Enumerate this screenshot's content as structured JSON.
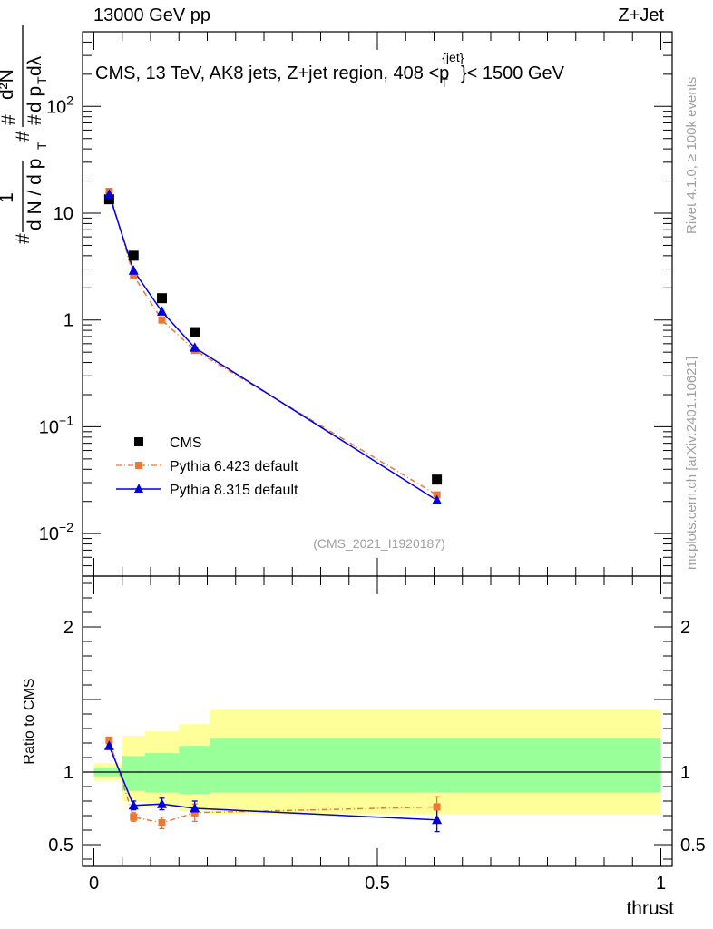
{
  "header": {
    "left": "13000 GeV pp",
    "right": "Z+Jet"
  },
  "side_notes": {
    "rivet": "Rivet 4.1.0, ≥ 100k events",
    "mcplots": "mcplots.cern.ch [arXiv:2401.10621]"
  },
  "chart_data": [
    {
      "type": "scatter",
      "panel": "main",
      "title": "CMS, 13 TeV, AK8 jets, Z+jet region, 408 <p_T^{jet}< 1500 GeV",
      "title_parts": {
        "pre": "CMS, 13 TeV, AK8 jets, Z+jet region, 408 <p",
        "sup": "{jet}",
        "sub": "T",
        "post": "}< 1500 GeV"
      },
      "ylabel": "1/dN/dp_T  d²N/dp_T dλ",
      "ylabel_parts": {
        "frac_num": "1",
        "frac_den": "d N / d p",
        "hash": "#",
        "d2n": "d²N",
        "dpt": "d p",
        "sub_t": "T",
        "dlambda": "dλ"
      },
      "yscale": "log",
      "ylim": [
        0.004,
        500
      ],
      "xlim": [
        -0.02,
        1.02
      ],
      "yticks": [
        {
          "value": 0.01,
          "base": "10",
          "exp": "−2"
        },
        {
          "value": 0.1,
          "base": "10",
          "exp": "−1"
        },
        {
          "value": 1,
          "label": "1"
        },
        {
          "value": 10,
          "label": "10"
        },
        {
          "value": 100,
          "base": "10",
          "exp": "2"
        }
      ],
      "watermark": "(CMS_2021_I1920187)",
      "legend_position": "lower-left",
      "series": [
        {
          "name": "CMS",
          "color": "#000000",
          "marker": "square",
          "line": "none",
          "x": [
            0.027,
            0.07,
            0.12,
            0.178,
            0.605
          ],
          "y": [
            13.5,
            4.0,
            1.6,
            0.77,
            0.032
          ]
        },
        {
          "name": "Pythia 6.423 default",
          "color": "#ee7733",
          "marker": "square-small",
          "line": "dashdot",
          "x": [
            0.027,
            0.07,
            0.12,
            0.178,
            0.605
          ],
          "y": [
            16.0,
            2.6,
            1.0,
            0.52,
            0.023
          ]
        },
        {
          "name": "Pythia 8.315 default",
          "color": "#0000dd",
          "marker": "triangle",
          "line": "solid",
          "x": [
            0.027,
            0.07,
            0.12,
            0.178,
            0.605
          ],
          "y": [
            15.0,
            2.9,
            1.2,
            0.55,
            0.0205
          ]
        }
      ]
    },
    {
      "type": "scatter",
      "panel": "ratio",
      "ylabel": "Ratio to CMS",
      "xlabel": "thrust",
      "ylim": [
        0.35,
        2.35
      ],
      "xlim": [
        -0.02,
        1.02
      ],
      "xticks": [
        {
          "value": 0,
          "label": "0"
        },
        {
          "value": 0.5,
          "label": "0.5"
        },
        {
          "value": 1,
          "label": "1"
        }
      ],
      "yticks": [
        {
          "value": 0.5,
          "label": "0.5"
        },
        {
          "value": 1,
          "label": "1"
        },
        {
          "value": 2,
          "label": "2"
        }
      ],
      "bins": [
        0,
        0.05,
        0.09,
        0.15,
        0.205,
        1.0
      ],
      "band_yellow": [
        [
          0.94,
          1.06
        ],
        [
          0.8,
          1.25
        ],
        [
          0.76,
          1.28
        ],
        [
          0.73,
          1.33
        ],
        [
          0.71,
          1.43
        ]
      ],
      "band_green": [
        [
          0.97,
          1.03
        ],
        [
          0.87,
          1.11
        ],
        [
          0.86,
          1.13
        ],
        [
          0.85,
          1.18
        ],
        [
          0.86,
          1.23
        ]
      ],
      "series": [
        {
          "name": "Pythia 6.423 default",
          "color": "#ee7733",
          "marker": "square-small",
          "line": "dashdot",
          "x": [
            0.027,
            0.07,
            0.12,
            0.178,
            0.605
          ],
          "y": [
            1.22,
            0.69,
            0.65,
            0.72,
            0.76
          ],
          "err": [
            0.02,
            0.03,
            0.04,
            0.06,
            0.07
          ]
        },
        {
          "name": "Pythia 8.315 default",
          "color": "#0000dd",
          "marker": "triangle",
          "line": "solid",
          "x": [
            0.027,
            0.07,
            0.12,
            0.178,
            0.605
          ],
          "y": [
            1.18,
            0.77,
            0.78,
            0.75,
            0.67
          ],
          "err": [
            0.015,
            0.03,
            0.04,
            0.05,
            0.08
          ]
        }
      ]
    }
  ]
}
